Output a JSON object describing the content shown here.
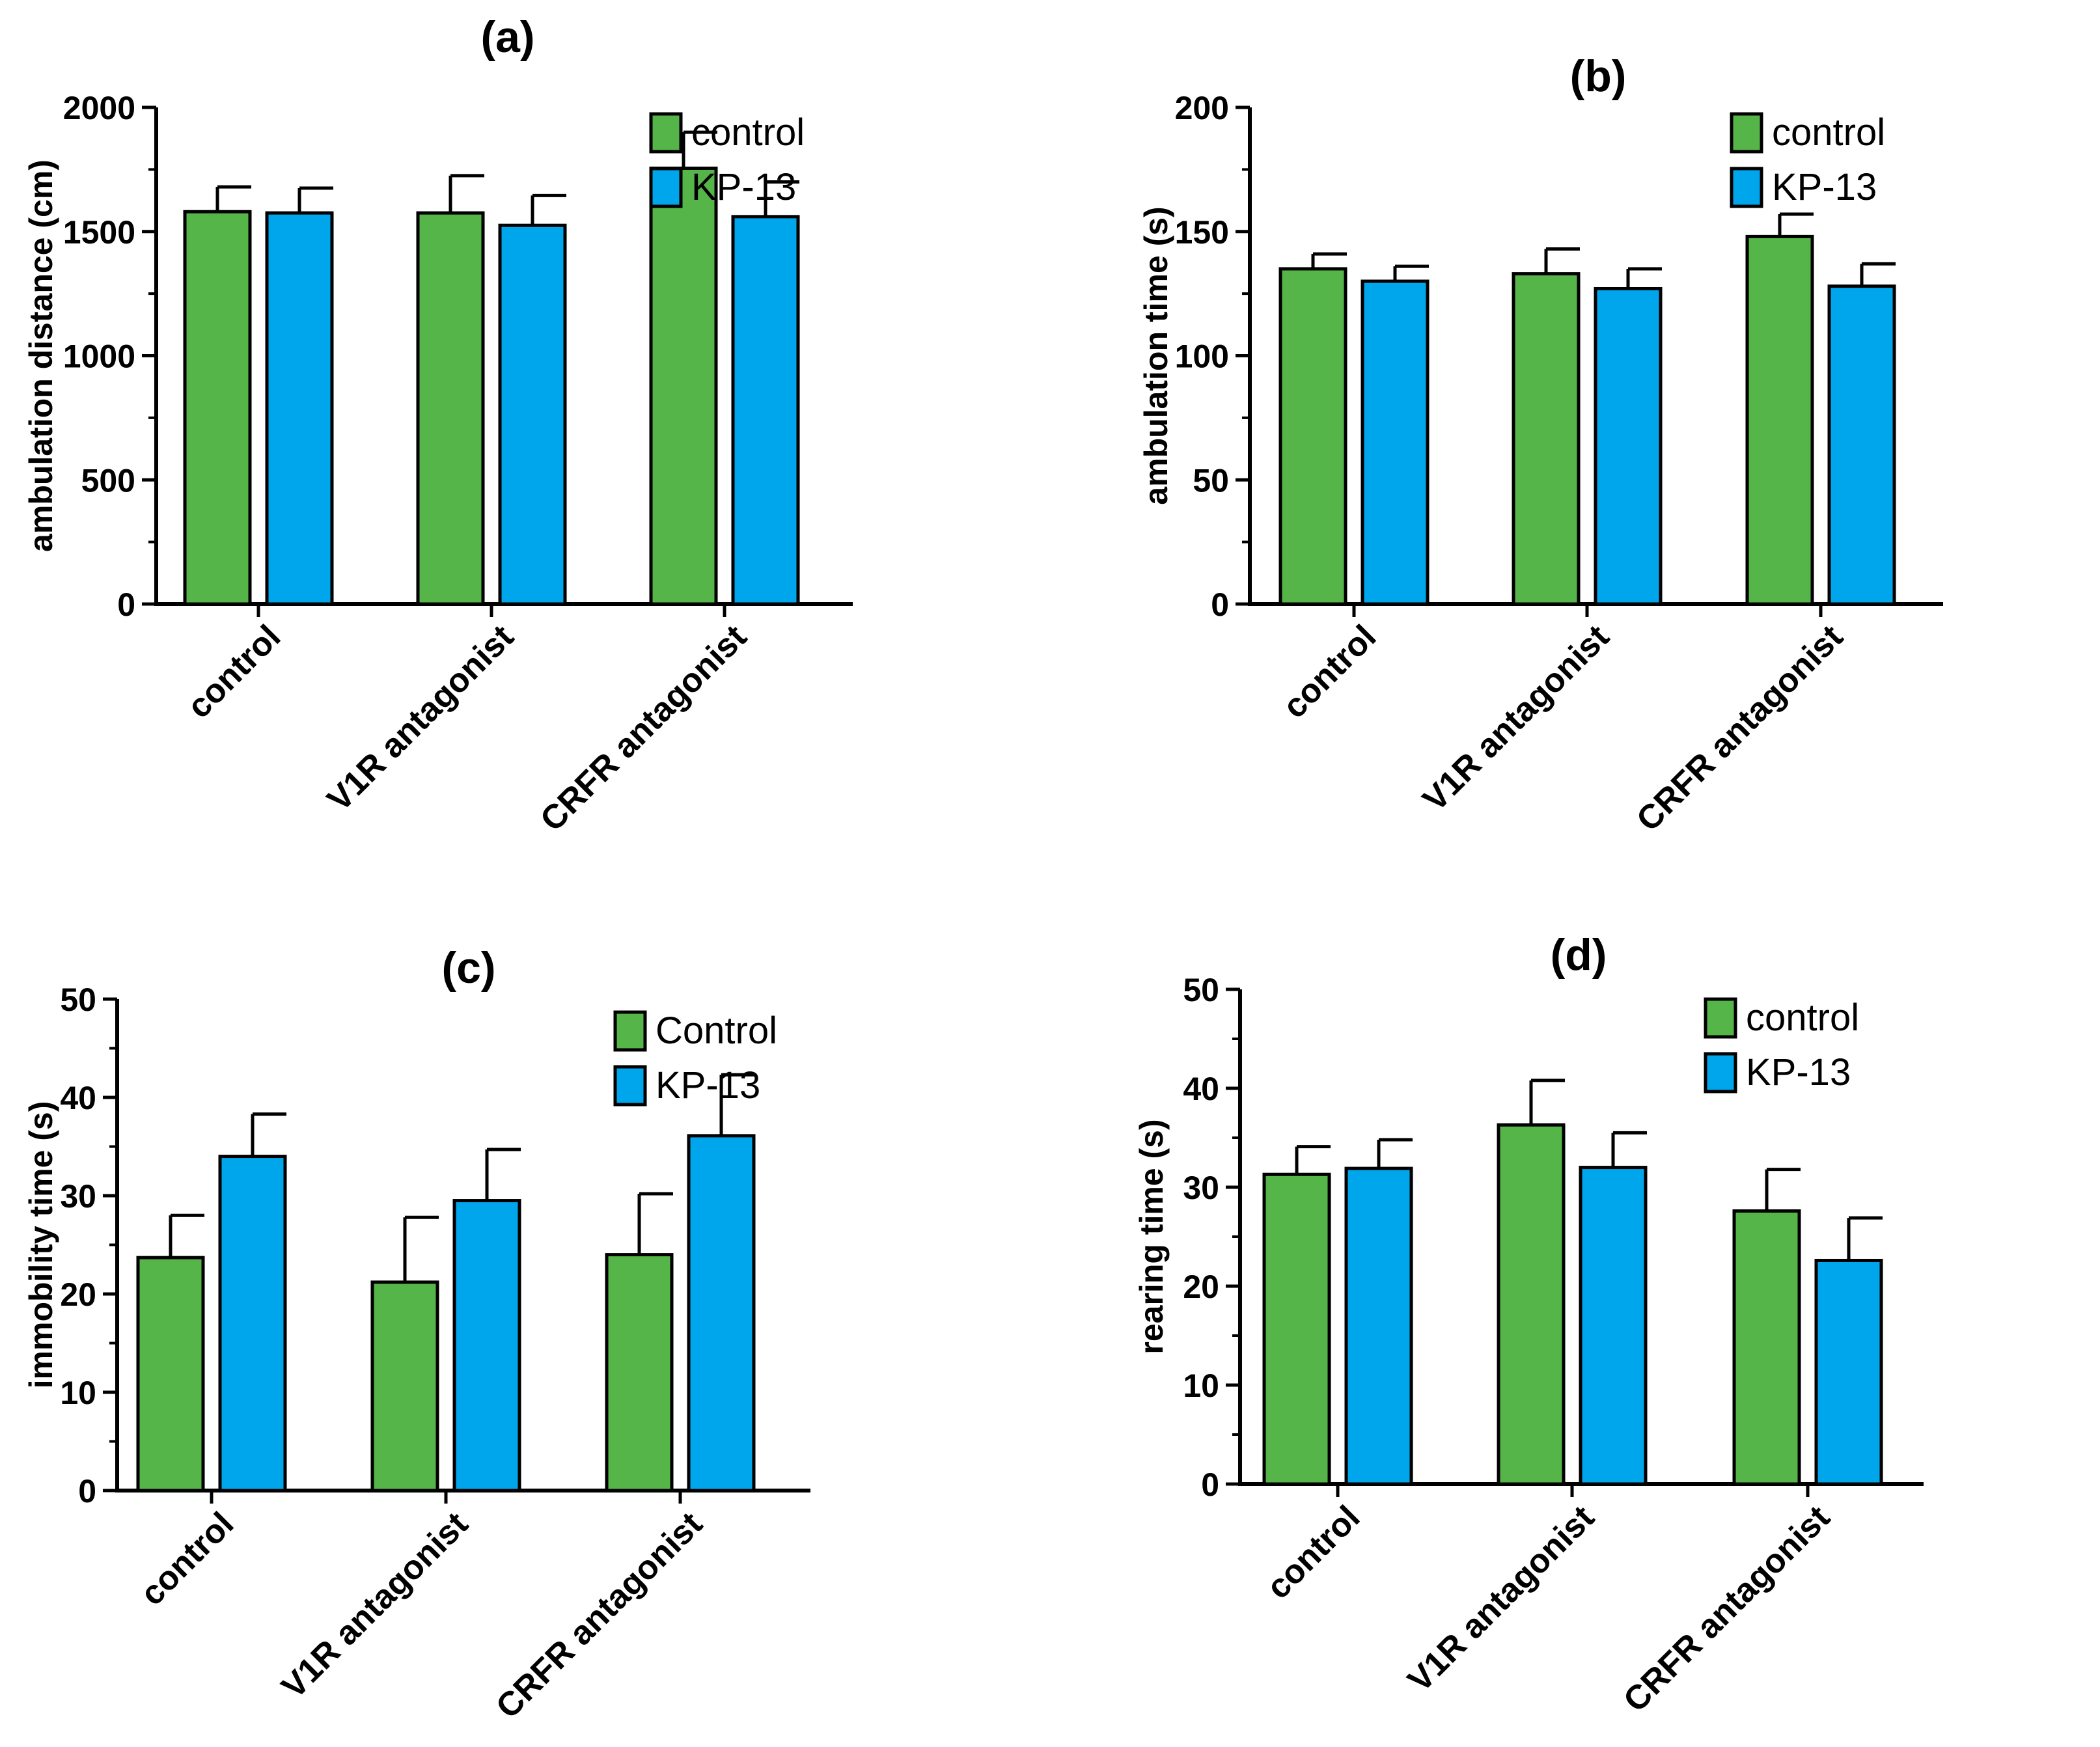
{
  "colors": {
    "control": "#55b548",
    "kp13": "#00a6ec",
    "axis": "#000000"
  },
  "chart_data": [
    {
      "type": "bar",
      "title": "(a)",
      "ylabel": "ambulation distance (cm)",
      "xlabel": "",
      "categories": [
        "control",
        "V1R antagonist",
        "CRFR antagonist"
      ],
      "ylim": [
        0,
        2000
      ],
      "yticks": [
        0,
        500,
        1000,
        1500,
        2000
      ],
      "legend": "top-right",
      "series": [
        {
          "name": "control",
          "values": [
            1580,
            1575,
            1755
          ],
          "errors": [
            100,
            150,
            145
          ]
        },
        {
          "name": "KP-13",
          "values": [
            1575,
            1525,
            1560
          ],
          "errors": [
            100,
            120,
            140
          ]
        }
      ]
    },
    {
      "type": "bar",
      "title": "(b)",
      "ylabel": "ambulation time (s)",
      "xlabel": "",
      "categories": [
        "control",
        "V1R antagonist",
        "CRFR antagonist"
      ],
      "ylim": [
        0,
        200
      ],
      "yticks": [
        0,
        50,
        100,
        150,
        200
      ],
      "legend": "top-right",
      "series": [
        {
          "name": "control",
          "values": [
            135,
            133,
            148
          ],
          "errors": [
            6,
            10,
            9
          ]
        },
        {
          "name": "KP-13",
          "values": [
            130,
            127,
            128
          ],
          "errors": [
            6,
            8,
            9
          ]
        }
      ]
    },
    {
      "type": "bar",
      "title": "(c)",
      "ylabel": "immobility time (s)",
      "xlabel": "",
      "categories": [
        "control",
        "V1R antagonist",
        "CRFR antagonist"
      ],
      "ylim": [
        0,
        50
      ],
      "yticks": [
        0,
        10,
        20,
        30,
        40,
        50
      ],
      "legend": "top-right",
      "series": [
        {
          "name": "Control",
          "values": [
            23.7,
            21.2,
            24.0
          ],
          "errors": [
            4.3,
            6.6,
            6.2
          ]
        },
        {
          "name": "KP-13",
          "values": [
            34.0,
            29.5,
            36.1
          ],
          "errors": [
            4.3,
            5.2,
            6.2
          ]
        }
      ]
    },
    {
      "type": "bar",
      "title": "(d)",
      "ylabel": "rearing time (s)",
      "xlabel": "",
      "categories": [
        "control",
        "V1R antagonist",
        "CRFR antagonist"
      ],
      "ylim": [
        0,
        50
      ],
      "yticks": [
        0,
        10,
        20,
        30,
        40,
        50
      ],
      "legend": "top-right",
      "series": [
        {
          "name": "control",
          "values": [
            31.3,
            36.3,
            27.6
          ],
          "errors": [
            2.8,
            4.5,
            4.2
          ]
        },
        {
          "name": "KP-13",
          "values": [
            31.9,
            32.0,
            22.6
          ],
          "errors": [
            2.9,
            3.5,
            4.3
          ]
        }
      ]
    }
  ]
}
